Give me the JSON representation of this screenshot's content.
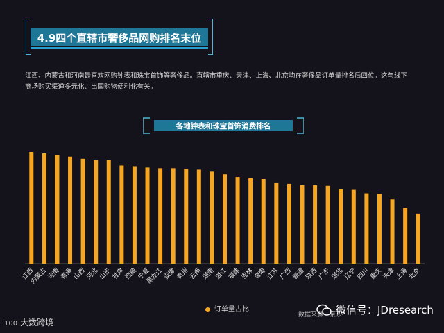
{
  "header": {
    "title": "4.9四个直辖市奢侈品网购排名末位"
  },
  "description": "江西、内蒙古和河南最喜欢网购钟表和珠宝首饰等奢侈品。直辖市重庆、天津、上海、北京均在奢侈品订单量排名后四位。这与线下商场购买渠道多元化、出国购物便利化有关。",
  "subtitle": "各地钟表和珠宝首饰消费排名",
  "legend": {
    "label": "订单量占比"
  },
  "source": "数据来源：京东",
  "watermark": {
    "wechat": "微信号：JDresearch",
    "logo": "大数跨境",
    "logo_mark": "100"
  },
  "colors": {
    "bar": "#f5a623",
    "accent": "#1f7797",
    "background": "#14131b"
  },
  "chart_data": {
    "type": "bar",
    "categories": [
      "江西",
      "内蒙古",
      "河南",
      "青海",
      "山西",
      "河北",
      "山东",
      "甘肃",
      "西藏",
      "宁夏",
      "黑龙江",
      "安徽",
      "贵州",
      "云南",
      "湖南",
      "浙江",
      "福建",
      "吉林",
      "海南",
      "江苏",
      "广西",
      "新疆",
      "陕西",
      "广东",
      "湖北",
      "辽宁",
      "四川",
      "重庆",
      "天津",
      "上海",
      "北京"
    ],
    "values": [
      100,
      98.8,
      97.0,
      95.8,
      93.9,
      92.7,
      92.7,
      87.9,
      87.3,
      86.1,
      85.5,
      85.5,
      84.8,
      84.2,
      82.4,
      80.0,
      77.6,
      76.4,
      75.8,
      72.1,
      71.5,
      70.3,
      70.3,
      69.7,
      66.7,
      66.1,
      63.0,
      62.4,
      57.6,
      49.7,
      44.8
    ],
    "series": [
      {
        "name": "订单量占比"
      }
    ],
    "xlabel": "",
    "ylabel": "",
    "ylim": [
      0,
      100
    ],
    "grid": false,
    "legend_position": "bottom-center"
  }
}
